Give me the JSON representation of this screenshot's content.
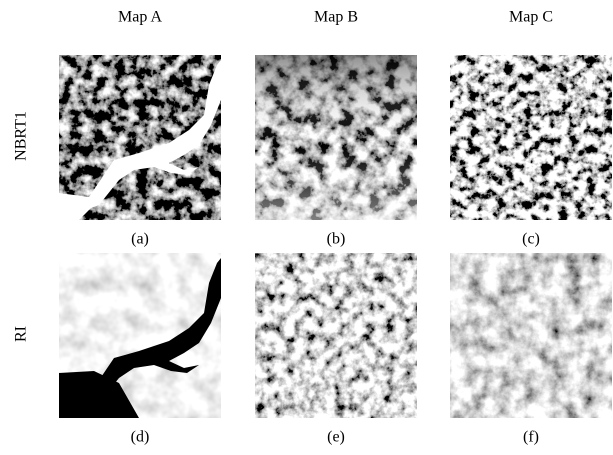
{
  "columns": [
    "Map A",
    "Map B",
    "Map C"
  ],
  "rows": [
    {
      "label": "NBRT1",
      "captions": [
        "(a)",
        "(b)",
        "(c)"
      ]
    },
    {
      "label": "RI",
      "captions": [
        "(d)",
        "(e)",
        "(f)"
      ]
    }
  ]
}
